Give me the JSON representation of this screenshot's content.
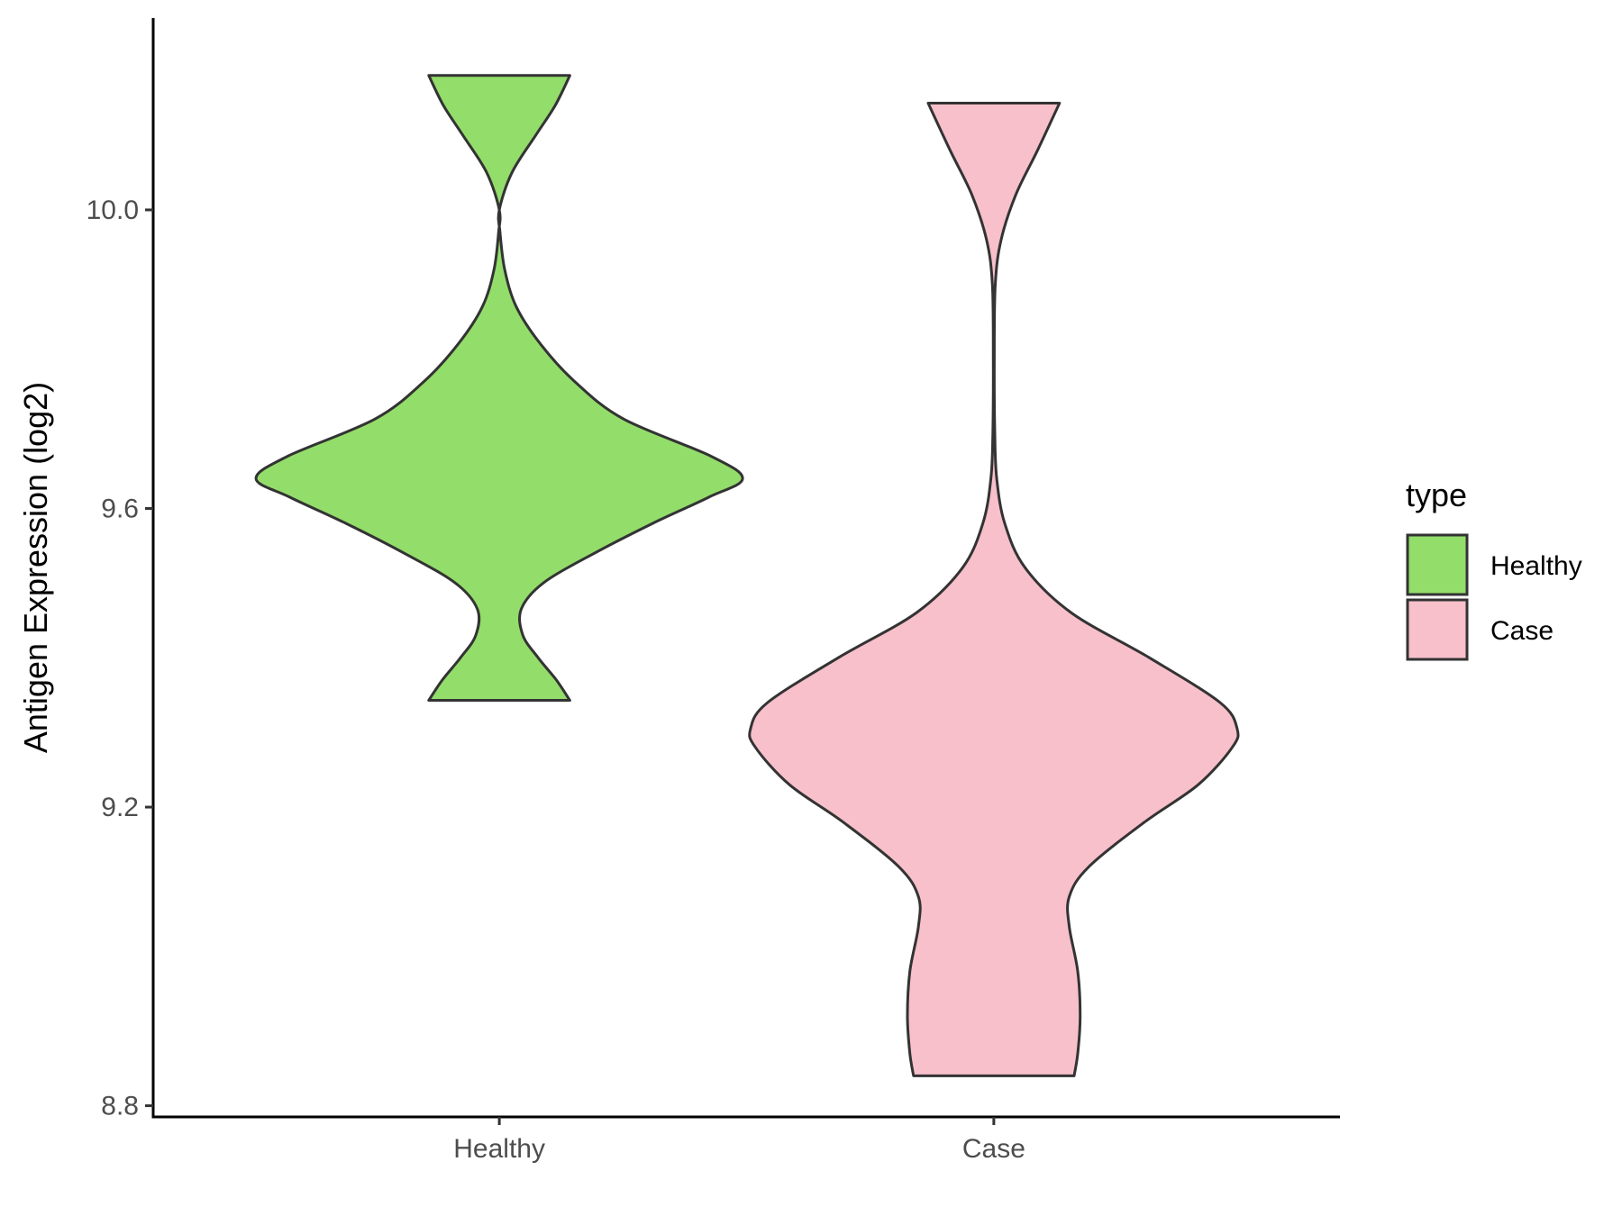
{
  "chart_data": {
    "type": "violin",
    "title": "",
    "xlabel": "",
    "ylabel": "Antigen Expression (log2)",
    "ylim": [
      8.785,
      10.257
    ],
    "yticks": [
      8.8,
      9.2,
      9.6,
      10.0
    ],
    "ytick_labels": [
      "8.8",
      "9.2",
      "9.6",
      "10.0"
    ],
    "categories": [
      "Healthy",
      "Case"
    ],
    "grid": false,
    "legend": {
      "title": "type",
      "position": "right",
      "entries": [
        {
          "label": "Healthy",
          "color": "#93dd6b"
        },
        {
          "label": "Case",
          "color": "#f7c0cb"
        }
      ]
    },
    "series": [
      {
        "name": "Healthy",
        "color": "#93dd6b",
        "range": [
          9.343,
          10.18
        ],
        "density_profile": [
          {
            "y": 9.343,
            "w": 0.29
          },
          {
            "y": 9.37,
            "w": 0.235
          },
          {
            "y": 9.4,
            "w": 0.16
          },
          {
            "y": 9.43,
            "w": 0.097
          },
          {
            "y": 9.465,
            "w": 0.09
          },
          {
            "y": 9.5,
            "w": 0.18
          },
          {
            "y": 9.54,
            "w": 0.39
          },
          {
            "y": 9.58,
            "w": 0.63
          },
          {
            "y": 9.615,
            "w": 0.86
          },
          {
            "y": 9.64,
            "w": 1.0
          },
          {
            "y": 9.67,
            "w": 0.87
          },
          {
            "y": 9.72,
            "w": 0.51
          },
          {
            "y": 9.77,
            "w": 0.31
          },
          {
            "y": 9.82,
            "w": 0.17
          },
          {
            "y": 9.87,
            "w": 0.07
          },
          {
            "y": 9.92,
            "w": 0.022
          },
          {
            "y": 9.97,
            "w": 0.003
          },
          {
            "y": 10.0,
            "w": 0.0
          },
          {
            "y": 10.05,
            "w": 0.052
          },
          {
            "y": 10.1,
            "w": 0.15
          },
          {
            "y": 10.14,
            "w": 0.23
          },
          {
            "y": 10.18,
            "w": 0.29
          }
        ]
      },
      {
        "name": "Case",
        "color": "#f7c0cb",
        "range": [
          8.84,
          10.143
        ],
        "density_profile": [
          {
            "y": 8.84,
            "w": 0.33
          },
          {
            "y": 8.87,
            "w": 0.345
          },
          {
            "y": 8.92,
            "w": 0.355
          },
          {
            "y": 8.98,
            "w": 0.345
          },
          {
            "y": 9.04,
            "w": 0.31
          },
          {
            "y": 9.08,
            "w": 0.31
          },
          {
            "y": 9.12,
            "w": 0.39
          },
          {
            "y": 9.18,
            "w": 0.62
          },
          {
            "y": 9.23,
            "w": 0.84
          },
          {
            "y": 9.28,
            "w": 0.98
          },
          {
            "y": 9.305,
            "w": 1.0
          },
          {
            "y": 9.34,
            "w": 0.93
          },
          {
            "y": 9.4,
            "w": 0.64
          },
          {
            "y": 9.46,
            "w": 0.32
          },
          {
            "y": 9.52,
            "w": 0.13
          },
          {
            "y": 9.58,
            "w": 0.045
          },
          {
            "y": 9.64,
            "w": 0.012
          },
          {
            "y": 9.7,
            "w": 0.004
          },
          {
            "y": 9.8,
            "w": 0.002
          },
          {
            "y": 9.9,
            "w": 0.006
          },
          {
            "y": 9.96,
            "w": 0.03
          },
          {
            "y": 10.02,
            "w": 0.09
          },
          {
            "y": 10.08,
            "w": 0.18
          },
          {
            "y": 10.143,
            "w": 0.27
          }
        ]
      }
    ]
  }
}
